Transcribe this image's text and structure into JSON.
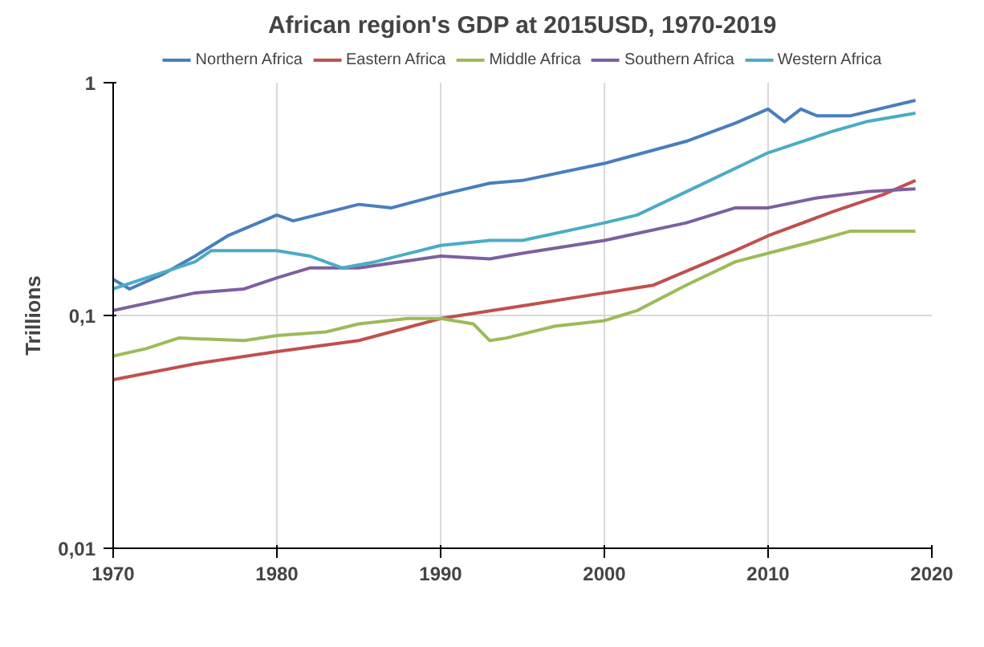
{
  "chart_data": {
    "type": "line",
    "title": "African region's GDP at 2015USD, 1970-2019",
    "ylabel": "Trillions",
    "log": "y",
    "grid": true,
    "legend": "top",
    "marker": "none",
    "line_style": "solid",
    "xlim": [
      1970,
      2020
    ],
    "xticks": [
      1970,
      1980,
      1990,
      2000,
      2010,
      2020
    ],
    "ylim": [
      0.01,
      1
    ],
    "yticks": [
      {
        "value": 0.01,
        "label": "0,01"
      },
      {
        "value": 0.1,
        "label": "0,1"
      },
      1
    ],
    "series": [
      {
        "name": "Northern Africa",
        "color": "#4a7ebb",
        "x": [
          1970,
          1971,
          1973,
          1975,
          1977,
          1980,
          1981,
          1985,
          1987,
          1990,
          1993,
          1995,
          2000,
          2005,
          2008,
          2010,
          2011,
          2012,
          2013,
          2015,
          2019
        ],
        "values": [
          0.143,
          0.13,
          0.15,
          0.18,
          0.22,
          0.27,
          0.255,
          0.3,
          0.29,
          0.33,
          0.37,
          0.38,
          0.45,
          0.56,
          0.67,
          0.77,
          0.68,
          0.77,
          0.72,
          0.72,
          0.84
        ]
      },
      {
        "name": "Eastern Africa",
        "color": "#c0504d",
        "x": [
          1970,
          1975,
          1980,
          1985,
          1990,
          1995,
          2000,
          2003,
          2005,
          2008,
          2010,
          2014,
          2017,
          2019
        ],
        "values": [
          0.053,
          0.062,
          0.07,
          0.078,
          0.097,
          0.11,
          0.125,
          0.135,
          0.155,
          0.19,
          0.22,
          0.28,
          0.33,
          0.38
        ]
      },
      {
        "name": "Middle Africa",
        "color": "#9bbb59",
        "x": [
          1970,
          1972,
          1974,
          1978,
          1980,
          1983,
          1985,
          1988,
          1990,
          1992,
          1993,
          1994,
          1997,
          2000,
          2002,
          2005,
          2008,
          2010,
          2013,
          2015,
          2019
        ],
        "values": [
          0.067,
          0.072,
          0.08,
          0.078,
          0.082,
          0.085,
          0.092,
          0.097,
          0.097,
          0.092,
          0.078,
          0.08,
          0.09,
          0.095,
          0.105,
          0.135,
          0.17,
          0.185,
          0.21,
          0.23,
          0.23
        ]
      },
      {
        "name": "Southern Africa",
        "color": "#7d60a0",
        "x": [
          1970,
          1975,
          1978,
          1980,
          1982,
          1985,
          1990,
          1993,
          1995,
          2000,
          2005,
          2008,
          2010,
          2013,
          2016,
          2019
        ],
        "values": [
          0.105,
          0.125,
          0.13,
          0.145,
          0.16,
          0.16,
          0.18,
          0.175,
          0.185,
          0.21,
          0.25,
          0.29,
          0.29,
          0.32,
          0.34,
          0.35
        ]
      },
      {
        "name": "Western Africa",
        "color": "#4bacc6",
        "x": [
          1970,
          1975,
          1976,
          1980,
          1982,
          1984,
          1986,
          1990,
          1993,
          1995,
          2000,
          2002,
          2005,
          2010,
          2014,
          2016,
          2019
        ],
        "values": [
          0.13,
          0.17,
          0.19,
          0.19,
          0.18,
          0.16,
          0.17,
          0.2,
          0.21,
          0.21,
          0.25,
          0.27,
          0.34,
          0.5,
          0.62,
          0.68,
          0.74
        ]
      }
    ]
  }
}
